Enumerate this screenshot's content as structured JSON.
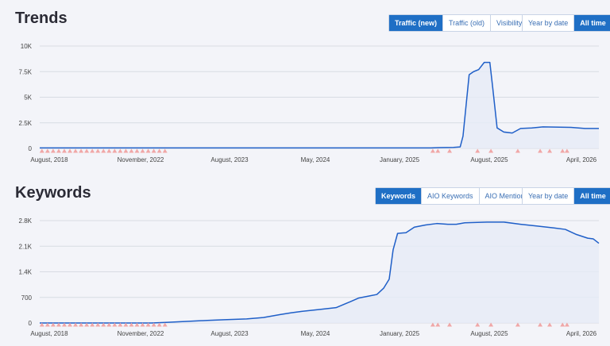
{
  "trends": {
    "title": "Trends",
    "metric_tabs": [
      "Traffic (new)",
      "Traffic (old)",
      "Visibility"
    ],
    "metric_active": 0,
    "range_tabs": [
      "Year by date",
      "All time"
    ],
    "range_active": 1
  },
  "keywords": {
    "title": "Keywords",
    "metric_tabs": [
      "Keywords",
      "AIO Keywords",
      "AIO Mentions"
    ],
    "metric_active": 0,
    "range_tabs": [
      "Year by date",
      "All time"
    ],
    "range_active": 1
  },
  "colors": {
    "line": "#1f5fc8",
    "area": "#e6ebf6",
    "grid": "#d8dbe3",
    "marker": "#f0a7a7",
    "accent": "#1f6fc5"
  },
  "chart_data": [
    {
      "type": "area",
      "name": "trends",
      "x_ticks": [
        "August, 2018",
        "November, 2022",
        "August, 2023",
        "May, 2024",
        "January, 2025",
        "August, 2025",
        "April, 2026"
      ],
      "y_ticks": [
        "0",
        "2.5K",
        "5K",
        "7.5K",
        "10K"
      ],
      "ylim": [
        0,
        10000
      ],
      "grid": true,
      "points": [
        [
          0,
          50
        ],
        [
          0.7,
          50
        ],
        [
          0.715,
          80
        ],
        [
          0.74,
          100
        ],
        [
          0.752,
          150
        ],
        [
          0.757,
          1200
        ],
        [
          0.768,
          7200
        ],
        [
          0.776,
          7500
        ],
        [
          0.785,
          7700
        ],
        [
          0.795,
          8400
        ],
        [
          0.805,
          8400
        ],
        [
          0.81,
          6000
        ],
        [
          0.818,
          2000
        ],
        [
          0.83,
          1600
        ],
        [
          0.845,
          1500
        ],
        [
          0.86,
          1950
        ],
        [
          0.88,
          2000
        ],
        [
          0.9,
          2100
        ],
        [
          0.95,
          2050
        ],
        [
          0.975,
          1950
        ],
        [
          1.0,
          1950
        ]
      ],
      "event_markers": [
        0.004,
        0.014,
        0.024,
        0.034,
        0.044,
        0.054,
        0.064,
        0.074,
        0.084,
        0.094,
        0.104,
        0.114,
        0.124,
        0.134,
        0.144,
        0.154,
        0.164,
        0.174,
        0.184,
        0.194,
        0.204,
        0.214,
        0.224,
        0.703,
        0.712,
        0.733,
        0.783,
        0.807,
        0.855,
        0.895,
        0.912,
        0.935,
        0.943
      ]
    },
    {
      "type": "area",
      "name": "keywords",
      "x_ticks": [
        "August, 2018",
        "November, 2022",
        "August, 2023",
        "May, 2024",
        "January, 2025",
        "August, 2025",
        "April, 2026"
      ],
      "y_ticks": [
        "0",
        "700",
        "1.4K",
        "2.1K",
        "2.8K"
      ],
      "ylim": [
        0,
        2800
      ],
      "grid": true,
      "points": [
        [
          0,
          0
        ],
        [
          0.2,
          0
        ],
        [
          0.23,
          20
        ],
        [
          0.27,
          50
        ],
        [
          0.3,
          70
        ],
        [
          0.33,
          90
        ],
        [
          0.37,
          110
        ],
        [
          0.4,
          150
        ],
        [
          0.43,
          230
        ],
        [
          0.45,
          280
        ],
        [
          0.47,
          320
        ],
        [
          0.5,
          370
        ],
        [
          0.53,
          420
        ],
        [
          0.555,
          580
        ],
        [
          0.57,
          680
        ],
        [
          0.59,
          740
        ],
        [
          0.603,
          780
        ],
        [
          0.615,
          950
        ],
        [
          0.625,
          1200
        ],
        [
          0.632,
          2000
        ],
        [
          0.64,
          2450
        ],
        [
          0.655,
          2470
        ],
        [
          0.67,
          2620
        ],
        [
          0.69,
          2680
        ],
        [
          0.71,
          2720
        ],
        [
          0.73,
          2700
        ],
        [
          0.745,
          2700
        ],
        [
          0.76,
          2740
        ],
        [
          0.8,
          2760
        ],
        [
          0.83,
          2760
        ],
        [
          0.86,
          2700
        ],
        [
          0.89,
          2650
        ],
        [
          0.92,
          2600
        ],
        [
          0.94,
          2560
        ],
        [
          0.96,
          2420
        ],
        [
          0.98,
          2320
        ],
        [
          0.99,
          2300
        ],
        [
          1.0,
          2180
        ]
      ],
      "event_markers": [
        0.004,
        0.014,
        0.024,
        0.034,
        0.044,
        0.054,
        0.064,
        0.074,
        0.084,
        0.094,
        0.104,
        0.114,
        0.124,
        0.134,
        0.144,
        0.154,
        0.164,
        0.174,
        0.184,
        0.194,
        0.204,
        0.214,
        0.224,
        0.703,
        0.712,
        0.733,
        0.783,
        0.807,
        0.855,
        0.895,
        0.912,
        0.935,
        0.943
      ]
    }
  ]
}
